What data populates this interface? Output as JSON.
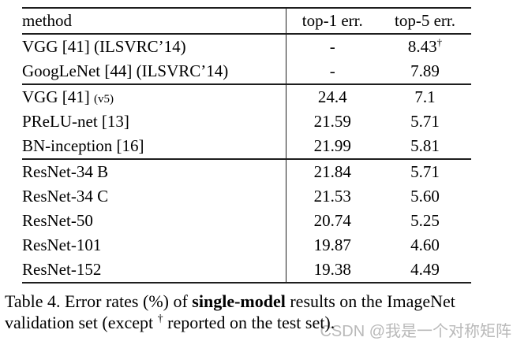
{
  "table": {
    "headers": [
      "method",
      "top-1 err.",
      "top-5 err."
    ],
    "groups": [
      {
        "rows": [
          {
            "method": "VGG [41] (ILSVRC’14)",
            "method_small": "",
            "top1": "-",
            "top5": "8.43",
            "top5_sup": "†",
            "bold": false
          },
          {
            "method": "GoogLeNet [44] (ILSVRC’14)",
            "method_small": "",
            "top1": "-",
            "top5": "7.89",
            "top5_sup": "",
            "bold": false
          }
        ]
      },
      {
        "rows": [
          {
            "method": "VGG [41] ",
            "method_small": "(v5)",
            "top1": "24.4",
            "top5": "7.1",
            "top5_sup": "",
            "bold": false
          },
          {
            "method": "PReLU-net [13]",
            "method_small": "",
            "top1": "21.59",
            "top5": "5.71",
            "top5_sup": "",
            "bold": false
          },
          {
            "method": "BN-inception [16]",
            "method_small": "",
            "top1": "21.99",
            "top5": "5.81",
            "top5_sup": "",
            "bold": false
          }
        ]
      },
      {
        "rows": [
          {
            "method": "ResNet-34 B",
            "method_small": "",
            "top1": "21.84",
            "top5": "5.71",
            "top5_sup": "",
            "bold": false
          },
          {
            "method": "ResNet-34 C",
            "method_small": "",
            "top1": "21.53",
            "top5": "5.60",
            "top5_sup": "",
            "bold": false
          },
          {
            "method": "ResNet-50",
            "method_small": "",
            "top1": "20.74",
            "top5": "5.25",
            "top5_sup": "",
            "bold": false
          },
          {
            "method": "ResNet-101",
            "method_small": "",
            "top1": "19.87",
            "top5": "4.60",
            "top5_sup": "",
            "bold": false
          },
          {
            "method": "ResNet-152",
            "method_small": "",
            "top1": "19.38",
            "top5": "4.49",
            "top5_sup": "",
            "bold": true
          }
        ]
      }
    ]
  },
  "caption": {
    "line1_pre": "Table 4. Error rates (%) of ",
    "line1_bold": "single-model",
    "line1_post": " results on the ImageNet",
    "line2_pre": "validation set (except ",
    "line2_sup": "†",
    "line2_post": " reported on the test set)."
  },
  "watermark": {
    "text": "CSDN @我是一个对称矩阵",
    "color": "#b9b9b9"
  }
}
